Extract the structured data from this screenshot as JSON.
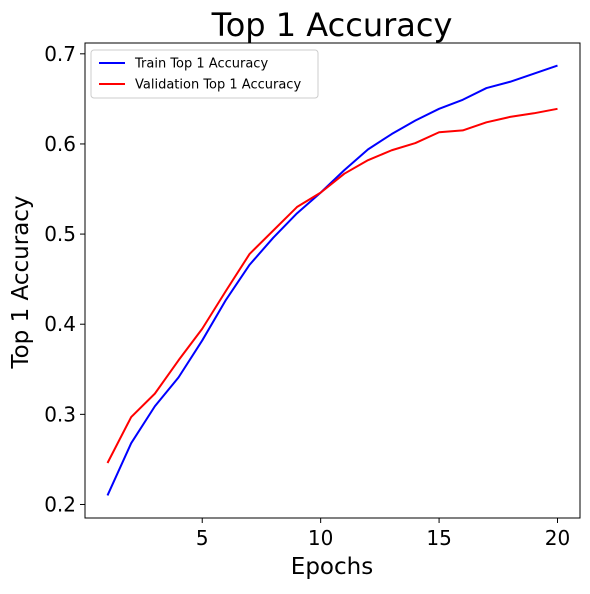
{
  "chart_data": {
    "type": "line",
    "title": "Top 1 Accuracy",
    "xlabel": "Epochs",
    "ylabel": "Top 1 Accuracy",
    "xlim": [
      0.05,
      20.95
    ],
    "ylim": [
      0.185,
      0.712
    ],
    "xticks": [
      5,
      10,
      15,
      20
    ],
    "yticks": [
      0.2,
      0.3,
      0.4,
      0.5,
      0.6,
      0.7
    ],
    "xtick_labels": [
      "5",
      "10",
      "15",
      "20"
    ],
    "ytick_labels": [
      "0.2",
      "0.3",
      "0.4",
      "0.5",
      "0.6",
      "0.7"
    ],
    "grid": false,
    "legend_position": "top-left",
    "x": [
      1,
      2,
      3,
      4,
      5,
      6,
      7,
      8,
      9,
      10,
      11,
      12,
      13,
      14,
      15,
      16,
      17,
      18,
      19,
      20
    ],
    "series": [
      {
        "name": "Train Top 1 Accuracy",
        "color": "#0000ff",
        "values": [
          0.21,
          0.268,
          0.309,
          0.341,
          0.382,
          0.427,
          0.466,
          0.496,
          0.523,
          0.546,
          0.571,
          0.594,
          0.611,
          0.626,
          0.639,
          0.649,
          0.662,
          0.669,
          0.678,
          0.687
        ]
      },
      {
        "name": "Validation Top 1 Accuracy",
        "color": "#ff0000",
        "values": [
          0.246,
          0.297,
          0.323,
          0.36,
          0.395,
          0.437,
          0.478,
          0.504,
          0.53,
          0.546,
          0.567,
          0.582,
          0.593,
          0.601,
          0.613,
          0.615,
          0.624,
          0.63,
          0.634,
          0.639
        ]
      }
    ]
  }
}
